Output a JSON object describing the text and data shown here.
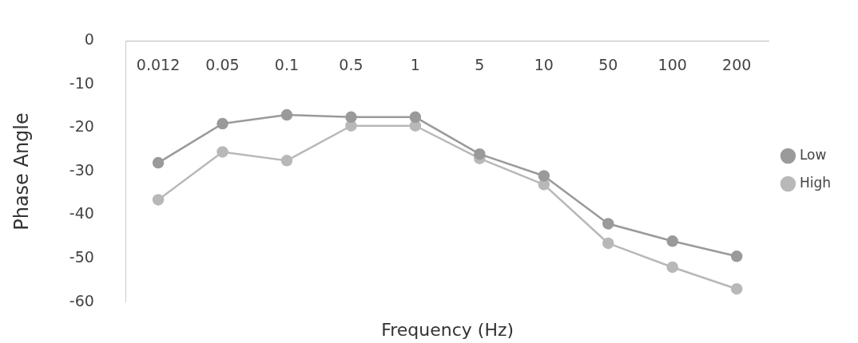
{
  "chart_data": {
    "type": "line",
    "xlabel": "Frequency (Hz)",
    "ylabel": "Phase Angle",
    "categories": [
      "0.012",
      "0.05",
      "0.1",
      "0.5",
      "1",
      "5",
      "10",
      "50",
      "100",
      "200"
    ],
    "series": [
      {
        "name": "Low",
        "color": "#9a9a9a",
        "values": [
          -28,
          -19,
          -17,
          -17.5,
          -17.5,
          -26,
          -31,
          -42,
          -46,
          -49.5
        ]
      },
      {
        "name": "High",
        "color": "#b8b8b8",
        "values": [
          -36.5,
          -25.5,
          -27.5,
          -19.5,
          -19.5,
          -27,
          -33,
          -46.5,
          -52,
          -57
        ]
      }
    ],
    "ylim": [
      -60,
      0
    ],
    "yticks": [
      0,
      -10,
      -20,
      -30,
      -40,
      -50,
      -60
    ],
    "grid": false,
    "legend": "right",
    "marker": "circle",
    "line_style": "solid"
  }
}
